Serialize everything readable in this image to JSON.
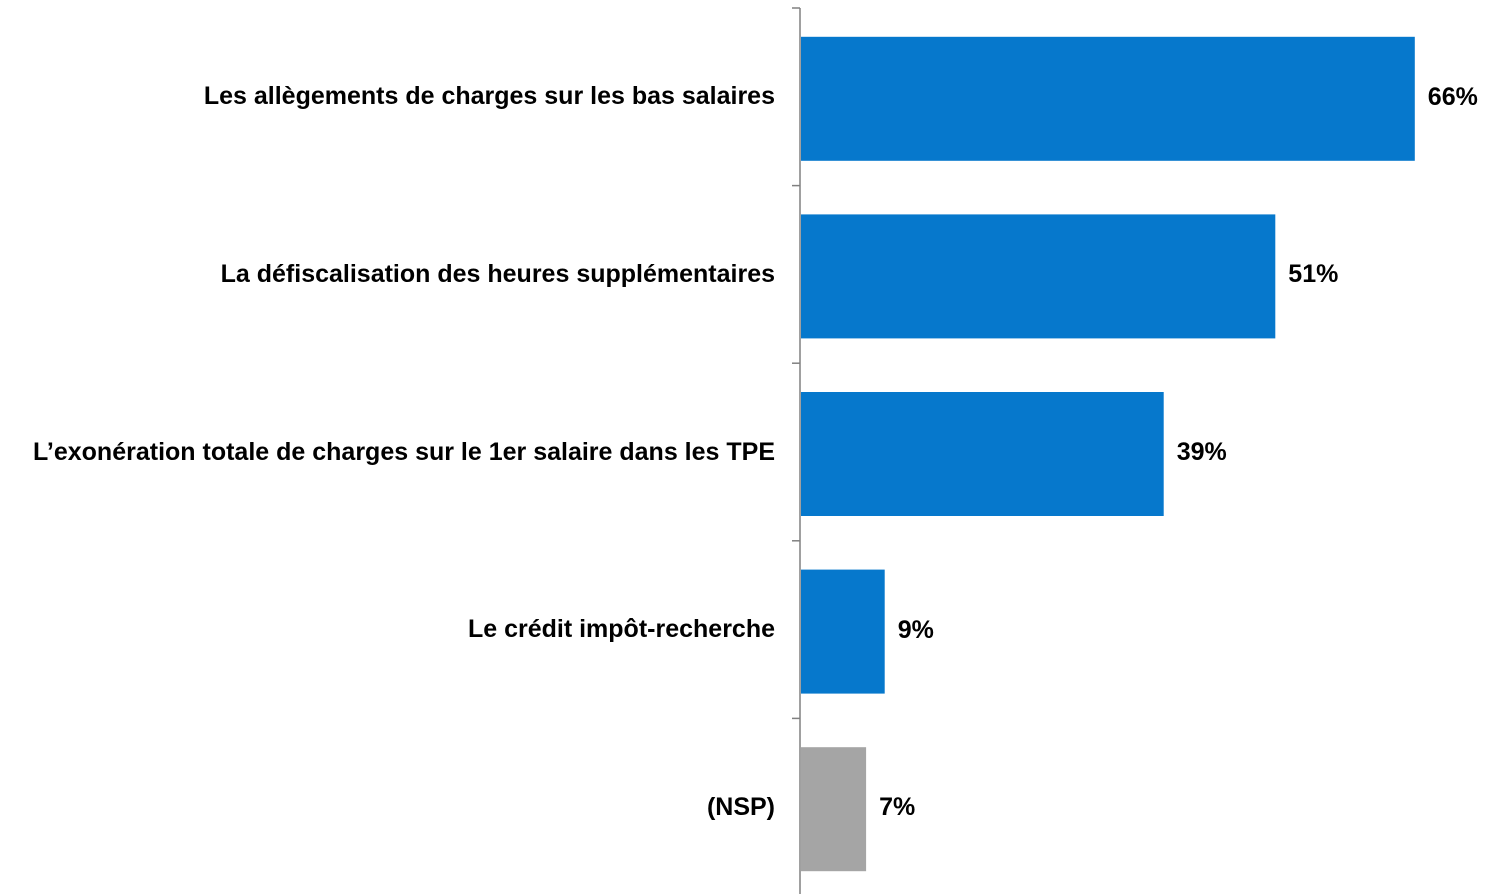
{
  "chart_data": {
    "type": "hbar",
    "categories": [
      "Les allègements de charges sur les bas salaires",
      "La défiscalisation des heures supplémentaires",
      "L’exonération totale de charges sur le 1er salaire dans les TPE",
      "Le crédit impôt-recherche",
      "(NSP)"
    ],
    "values": [
      66,
      51,
      39,
      9,
      7
    ],
    "value_labels": [
      "66%",
      "51%",
      "39%",
      "9%",
      "7%"
    ],
    "colors": [
      "#0678cc",
      "#0678cc",
      "#0678cc",
      "#0678cc",
      "#a5a5a5"
    ]
  }
}
